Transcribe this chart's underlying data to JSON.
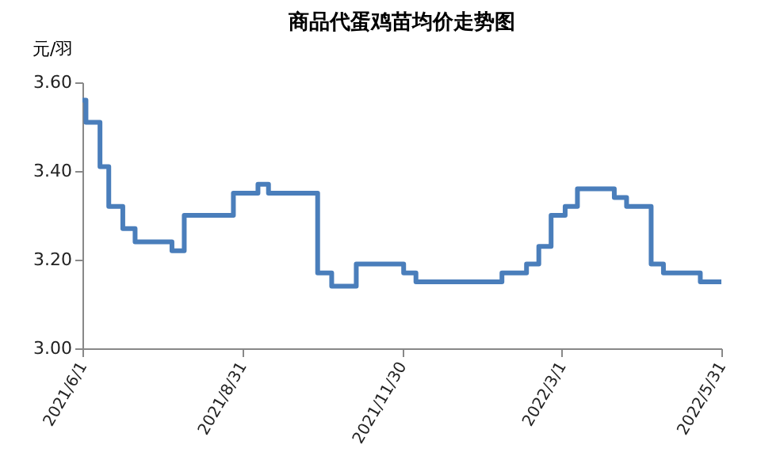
{
  "chart_data": {
    "type": "step",
    "title": "商品代蛋鸡苗均价走势图",
    "ylabel": "元/羽",
    "x": [
      "2021-06-01",
      "2021-06-03",
      "2021-06-11",
      "2021-06-16",
      "2021-06-24",
      "2021-07-01",
      "2021-07-22",
      "2021-07-29",
      "2021-08-26",
      "2021-09-09",
      "2021-09-15",
      "2021-10-13",
      "2021-10-21",
      "2021-11-04",
      "2021-12-01",
      "2021-12-08",
      "2022-01-26",
      "2022-02-09",
      "2022-02-16",
      "2022-02-23",
      "2022-03-03",
      "2022-03-10",
      "2022-03-31",
      "2022-04-07",
      "2022-04-21",
      "2022-04-28",
      "2022-05-19",
      "2022-05-31"
    ],
    "series": [
      {
        "color": "#4a7ebb",
        "values": [
          3.56,
          3.51,
          3.41,
          3.32,
          3.27,
          3.24,
          3.22,
          3.3,
          3.35,
          3.37,
          3.35,
          3.17,
          3.14,
          3.19,
          3.17,
          3.15,
          3.17,
          3.19,
          3.23,
          3.3,
          3.32,
          3.36,
          3.34,
          3.32,
          3.19,
          3.17,
          3.15,
          3.15
        ]
      }
    ],
    "xlim": [
      "2021-06-01",
      "2022-05-31"
    ],
    "xticks": [
      {
        "value": "2021-06-01",
        "label": "2021/6/1"
      },
      {
        "value": "2021-08-31",
        "label": "2021/8/31"
      },
      {
        "value": "2021-11-30",
        "label": "2021/11/30"
      },
      {
        "value": "2022-03-01",
        "label": "2022/3/1"
      },
      {
        "value": "2022-05-31",
        "label": "2022/5/31"
      }
    ],
    "ylim": [
      3.0,
      3.6
    ],
    "yticks": [
      {
        "value": 3.0,
        "label": "3.00"
      },
      {
        "value": 3.2,
        "label": "3.20"
      },
      {
        "value": 3.4,
        "label": "3.40"
      },
      {
        "value": 3.6,
        "label": "3.60"
      }
    ],
    "grid": false,
    "marker": "none",
    "line_style": "solid"
  }
}
